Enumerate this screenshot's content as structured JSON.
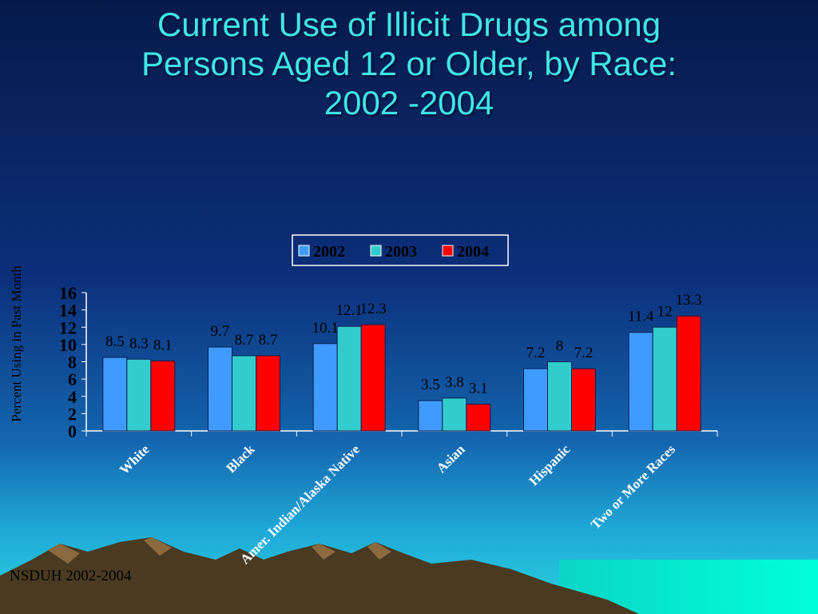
{
  "slide": {
    "title_lines": [
      "Current Use of Illicit Drugs among",
      "Persons Aged 12 or Older, by Race:",
      "2002 -2004"
    ],
    "source": "NSDUH 2002-2004"
  },
  "chart_data": {
    "type": "bar",
    "categories": [
      "White",
      "Black",
      "Amer. Indian/Alaska Native",
      "Asian",
      "Hispanic",
      "Two or More Races"
    ],
    "series": [
      {
        "name": "2002",
        "values": [
          8.5,
          9.7,
          10.1,
          3.5,
          7.2,
          11.4
        ],
        "color": "#3f9bff"
      },
      {
        "name": "2003",
        "values": [
          8.3,
          8.7,
          12.1,
          3.8,
          8,
          12
        ],
        "color": "#33cccc"
      },
      {
        "name": "2004",
        "values": [
          8.1,
          8.7,
          12.3,
          3.1,
          7.2,
          13.3
        ],
        "color": "#ff0000"
      }
    ],
    "ylabel": "Percent Using in Past Month",
    "yticks": [
      "0",
      "2",
      "4",
      "6",
      "8",
      "10",
      "12",
      "14",
      "16"
    ],
    "ylim": [
      0,
      16
    ],
    "legend": "top-center"
  }
}
